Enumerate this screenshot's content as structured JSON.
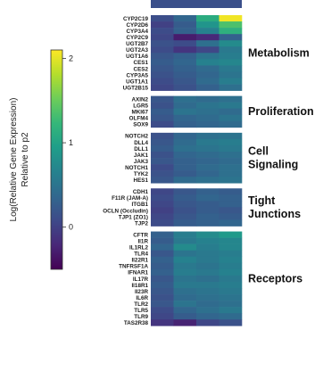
{
  "chart_data": {
    "type": "heatmap",
    "colorbar": {
      "label_lines": [
        "Log(Relative Gene Expression)",
        "Relative to p2"
      ],
      "ticks": [
        2,
        1,
        0
      ],
      "range": [
        -0.5,
        2.1
      ],
      "colormap": "viridis"
    },
    "columns": 4,
    "groups": [
      {
        "name_lines": [
          "Metabolism"
        ],
        "rows": [
          {
            "gene": "CYP2C19",
            "values": [
              0.12,
              0.35,
              1.1,
              2.05
            ]
          },
          {
            "gene": "CYP2D6",
            "values": [
              0.0,
              0.25,
              0.85,
              1.35
            ]
          },
          {
            "gene": "CYP3A4",
            "values": [
              0.1,
              0.3,
              0.65,
              1.15
            ]
          },
          {
            "gene": "CYP2C9",
            "values": [
              0.05,
              -0.3,
              -0.2,
              0.3
            ]
          },
          {
            "gene": "UGT2B7",
            "values": [
              0.15,
              0.1,
              0.45,
              0.75
            ]
          },
          {
            "gene": "UGT2A3",
            "values": [
              0.1,
              -0.1,
              0.05,
              0.55
            ]
          },
          {
            "gene": "UGT1A6",
            "values": [
              0.2,
              0.3,
              0.5,
              0.6
            ]
          },
          {
            "gene": "CES1",
            "values": [
              0.25,
              0.35,
              0.65,
              0.7
            ]
          },
          {
            "gene": "CES2",
            "values": [
              0.2,
              0.3,
              0.4,
              0.55
            ]
          },
          {
            "gene": "CYP3A5",
            "values": [
              0.15,
              0.25,
              0.35,
              0.5
            ]
          },
          {
            "gene": "UGT1A1",
            "values": [
              0.1,
              0.2,
              0.4,
              0.6
            ]
          },
          {
            "gene": "UGT2B15",
            "values": [
              0.05,
              0.15,
              0.3,
              0.45
            ]
          }
        ]
      },
      {
        "name_lines": [
          "Proliferation"
        ],
        "rows": [
          {
            "gene": "AXIN2",
            "values": [
              0.2,
              0.45,
              0.4,
              0.45
            ]
          },
          {
            "gene": "LGR5",
            "values": [
              0.15,
              0.4,
              0.5,
              0.55
            ]
          },
          {
            "gene": "MKI67",
            "values": [
              0.25,
              0.5,
              0.45,
              0.4
            ]
          },
          {
            "gene": "OLFM4",
            "values": [
              0.2,
              0.35,
              0.4,
              0.5
            ]
          },
          {
            "gene": "SOX9",
            "values": [
              0.1,
              0.3,
              0.35,
              0.4
            ]
          }
        ]
      },
      {
        "name_lines": [
          "Cell",
          "Signaling"
        ],
        "rows": [
          {
            "gene": "NOTCH2",
            "values": [
              0.15,
              0.35,
              0.45,
              0.5
            ]
          },
          {
            "gene": "DLL4",
            "values": [
              0.2,
              0.4,
              0.55,
              0.6
            ]
          },
          {
            "gene": "DLL1",
            "values": [
              0.25,
              0.45,
              0.5,
              0.55
            ]
          },
          {
            "gene": "JAK1",
            "values": [
              0.15,
              0.35,
              0.4,
              0.45
            ]
          },
          {
            "gene": "JAK3",
            "values": [
              0.2,
              0.3,
              0.35,
              0.4
            ]
          },
          {
            "gene": "NOTCH1",
            "values": [
              0.1,
              0.3,
              0.4,
              0.45
            ]
          },
          {
            "gene": "TYK2",
            "values": [
              0.15,
              0.25,
              0.35,
              0.45
            ]
          },
          {
            "gene": "HES1",
            "values": [
              0.2,
              0.4,
              0.45,
              0.5
            ]
          }
        ]
      },
      {
        "name_lines": [
          "Tight",
          "Junctions"
        ],
        "rows": [
          {
            "gene": "CDH1",
            "values": [
              0.05,
              0.2,
              0.3,
              0.25
            ]
          },
          {
            "gene": "F11R (JAM-A)",
            "values": [
              0.1,
              0.25,
              0.35,
              0.3
            ]
          },
          {
            "gene": "ITGB1",
            "values": [
              0.05,
              0.2,
              0.25,
              0.3
            ]
          },
          {
            "gene": "OCLN (Occludin)",
            "values": [
              0.0,
              0.15,
              0.25,
              0.2
            ]
          },
          {
            "gene": "TJP1 (ZO1)",
            "values": [
              0.05,
              0.2,
              0.3,
              0.25
            ]
          },
          {
            "gene": "TJP2",
            "values": [
              0.1,
              0.25,
              0.3,
              0.35
            ]
          }
        ]
      },
      {
        "name_lines": [
          "Receptors"
        ],
        "rows": [
          {
            "gene": "CFTR",
            "values": [
              0.3,
              0.6,
              0.75,
              0.9
            ]
          },
          {
            "gene": "Il1R",
            "values": [
              0.25,
              0.55,
              0.65,
              0.7
            ]
          },
          {
            "gene": "IL1RL2",
            "values": [
              0.35,
              0.75,
              0.6,
              0.7
            ]
          },
          {
            "gene": "TLR4",
            "values": [
              0.2,
              0.5,
              0.55,
              0.6
            ]
          },
          {
            "gene": "Il22R1",
            "values": [
              0.3,
              0.65,
              0.55,
              0.65
            ]
          },
          {
            "gene": "TNFRSF1A",
            "values": [
              0.25,
              0.55,
              0.5,
              0.6
            ]
          },
          {
            "gene": "IFNAR1",
            "values": [
              0.3,
              0.6,
              0.55,
              0.65
            ]
          },
          {
            "gene": "IL17R",
            "values": [
              0.2,
              0.5,
              0.45,
              0.55
            ]
          },
          {
            "gene": "Il18R1",
            "values": [
              0.25,
              0.55,
              0.55,
              0.6
            ]
          },
          {
            "gene": "Il23R",
            "values": [
              0.2,
              0.45,
              0.5,
              0.55
            ]
          },
          {
            "gene": "IL6R",
            "values": [
              0.15,
              0.4,
              0.45,
              0.5
            ]
          },
          {
            "gene": "TLR2",
            "values": [
              0.2,
              0.5,
              0.4,
              0.45
            ]
          },
          {
            "gene": "TLR5",
            "values": [
              0.1,
              0.35,
              0.45,
              0.55
            ]
          },
          {
            "gene": "TLR9",
            "values": [
              0.05,
              0.25,
              0.35,
              0.4
            ]
          },
          {
            "gene": "TAS2R38",
            "values": [
              -0.1,
              -0.25,
              0.05,
              0.15
            ]
          }
        ]
      }
    ]
  }
}
